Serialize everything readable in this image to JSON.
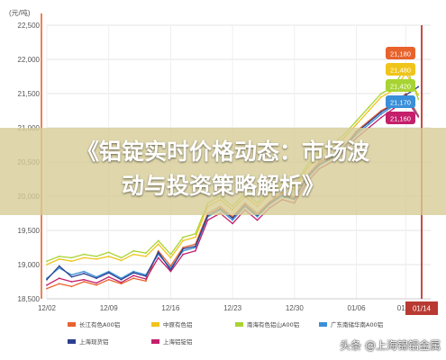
{
  "headline": {
    "line1": "《铝锭实时价格动态：市场波",
    "line2": "动与投资策略解析》"
  },
  "watermark": "头条 @上海锦铝金属",
  "chart_data": {
    "type": "line",
    "unit_label": "(元/吨)",
    "ylim": [
      18500,
      22500
    ],
    "y_ticks": [
      "22,500",
      "22,000",
      "21,500",
      "21,000",
      "20,500",
      "20,000",
      "19,500",
      "19,000",
      "18,500"
    ],
    "y_tick_values": [
      22500,
      22000,
      21500,
      21000,
      20500,
      20000,
      19500,
      19000,
      18500
    ],
    "x_ticks": [
      "12/02",
      "12/09",
      "12/16",
      "12/23",
      "12/30",
      "01/06",
      "01/11"
    ],
    "highlight_label": "01/14",
    "x_tick_positions": [
      0,
      5,
      10,
      15,
      20,
      25,
      29
    ],
    "highlight_position": 31,
    "grid": true,
    "legend_position": "bottom",
    "series": [
      {
        "name": "长江有色A00铝",
        "color": "#e8622c",
        "last_label": "21,180",
        "values": [
          18650,
          18720,
          18680,
          18750,
          18700,
          18780,
          18720,
          18800,
          18760,
          19200,
          18980,
          19250,
          19300,
          19750,
          19850,
          19700,
          19900,
          19750,
          19920,
          20050,
          19980,
          20300,
          20500,
          20580,
          20720,
          20950,
          21100,
          21250,
          21350,
          21500,
          21180
        ]
      },
      {
        "name": "中原有色铝",
        "color": "#f0c419",
        "last_label": "21,480",
        "values": [
          19000,
          19080,
          19050,
          19100,
          19080,
          19120,
          19060,
          19150,
          19120,
          19300,
          19100,
          19350,
          19400,
          19850,
          19950,
          19800,
          20000,
          19850,
          20050,
          20150,
          20100,
          20400,
          20600,
          20700,
          20850,
          21050,
          21250,
          21450,
          21550,
          21800,
          21480
        ]
      },
      {
        "name": "南海有色铝山A00铝",
        "color": "#a8d433",
        "last_label": "21,420",
        "values": [
          19050,
          19120,
          19100,
          19150,
          19120,
          19180,
          19100,
          19200,
          19170,
          19350,
          19150,
          19400,
          19450,
          19900,
          20000,
          19850,
          20050,
          19900,
          20100,
          20200,
          20150,
          20450,
          20650,
          20750,
          20900,
          21100,
          21300,
          21500,
          21600,
          21900,
          21420
        ]
      },
      {
        "name": "广东南储华南A00铝",
        "color": "#3a8fd9",
        "last_label": "21,170",
        "values": [
          18800,
          18950,
          18850,
          18900,
          18820,
          18900,
          18800,
          18900,
          18850,
          19150,
          18950,
          19200,
          19250,
          19700,
          19800,
          19650,
          19850,
          19700,
          19880,
          20000,
          19950,
          20250,
          20450,
          20550,
          20700,
          20900,
          21050,
          21200,
          21320,
          21450,
          21170
        ]
      },
      {
        "name": "上海现货铝",
        "color": "#2b3f8e",
        "last_label": "",
        "values": [
          18780,
          18980,
          18820,
          18870,
          18800,
          18880,
          18780,
          18880,
          18830,
          19180,
          18920,
          19230,
          19270,
          19720,
          19820,
          19680,
          19870,
          19720,
          19900,
          20020,
          19960,
          20280,
          20470,
          20560,
          20710,
          20930,
          21080,
          21230,
          21340,
          21480,
          21600
        ]
      },
      {
        "name": "上海铝锭铝",
        "color": "#c41f6b",
        "last_label": "21,160",
        "values": [
          18700,
          18800,
          18750,
          18780,
          18730,
          18820,
          18740,
          18840,
          18790,
          19100,
          18900,
          19150,
          19200,
          19650,
          19750,
          19600,
          19800,
          19650,
          19830,
          19950,
          19900,
          20200,
          20400,
          20500,
          20650,
          20850,
          21000,
          21150,
          21280,
          21420,
          21160
        ]
      }
    ]
  }
}
